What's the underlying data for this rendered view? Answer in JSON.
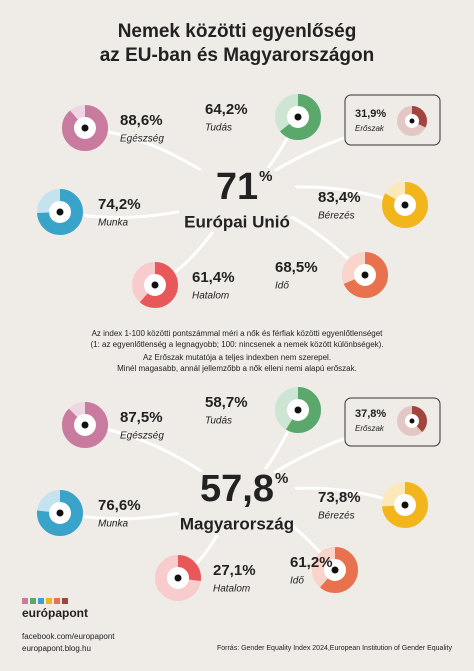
{
  "title_lines": [
    "Nemek közötti egyenlőség",
    "az EU-ban és Magyarországon"
  ],
  "sections": [
    {
      "score": "71",
      "unit": "%",
      "name": "Európai Unió",
      "domains": [
        {
          "name": "Egészség",
          "value": 88.6,
          "label": "88,6%",
          "color": "#c87b9e"
        },
        {
          "name": "Tudás",
          "value": 64.2,
          "label": "64,2%",
          "color": "#5aa86b"
        },
        {
          "name": "Erőszak",
          "value": 31.9,
          "label": "31,9%",
          "color": "#a0463e"
        },
        {
          "name": "Munka",
          "value": 74.2,
          "label": "74,2%",
          "color": "#3aa3c9"
        },
        {
          "name": "Bérezés",
          "value": 83.4,
          "label": "83,4%",
          "color": "#f2b61c"
        },
        {
          "name": "Hatalom",
          "value": 61.4,
          "label": "61,4%",
          "color": "#e8575a"
        },
        {
          "name": "Idő",
          "value": 68.5,
          "label": "68,5%",
          "color": "#e8714e"
        }
      ]
    },
    {
      "score": "57,8",
      "unit": "%",
      "name": "Magyarország",
      "domains": [
        {
          "name": "Egészség",
          "value": 87.5,
          "label": "87,5%",
          "color": "#c87b9e"
        },
        {
          "name": "Tudás",
          "value": 58.7,
          "label": "58,7%",
          "color": "#5aa86b"
        },
        {
          "name": "Erőszak",
          "value": 37.8,
          "label": "37,8%",
          "color": "#a0463e"
        },
        {
          "name": "Munka",
          "value": 76.6,
          "label": "76,6%",
          "color": "#3aa3c9"
        },
        {
          "name": "Bérezés",
          "value": 73.8,
          "label": "73,8%",
          "color": "#f2b61c"
        },
        {
          "name": "Hatalom",
          "value": 27.1,
          "label": "27,1%",
          "color": "#e8575a"
        },
        {
          "name": "Idő",
          "value": 61.2,
          "label": "61,2%",
          "color": "#e8714e"
        }
      ]
    }
  ],
  "notes": [
    "Az index 1-100 közötti pontszámmal méri a nők és férfiak közötti egyenlőtlenséget",
    "(1: az egyenlőtlenség a legnagyobb; 100: nincsenek a nemek között különbségek).",
    "Az Erőszak mutatója a teljes indexben nem szerepel.",
    "Minél magasabb, annál jellemzőbb a nők elleni nemi alapú erőszak."
  ],
  "logo": "európapont",
  "links": [
    "facebook.com/europapont",
    "europapont.blog.hu"
  ],
  "source": "Forrás: Gender Equality Index 2024,European Institution of Gender Equality"
}
